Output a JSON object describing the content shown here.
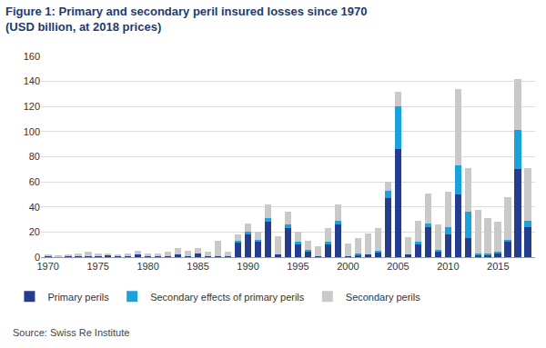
{
  "chart_data": {
    "type": "bar",
    "title": "Figure 1: Primary and secondary peril insured losses since 1970\n(USD billion, at 2018 prices)",
    "annotations": [
      "Source: Swiss Re Institute"
    ],
    "x": [
      1970,
      1971,
      1972,
      1973,
      1974,
      1975,
      1976,
      1977,
      1978,
      1979,
      1980,
      1981,
      1982,
      1983,
      1984,
      1985,
      1986,
      1987,
      1988,
      1989,
      1990,
      1991,
      1992,
      1993,
      1994,
      1995,
      1996,
      1997,
      1998,
      1999,
      2000,
      2001,
      2002,
      2003,
      2004,
      2005,
      2006,
      2007,
      2008,
      2009,
      2010,
      2011,
      2012,
      2013,
      2014,
      2015,
      2016,
      2017,
      2018
    ],
    "series": [
      {
        "name": "Primary perils",
        "color": "#263c8e",
        "values": [
          1,
          0.5,
          1,
          1,
          1,
          1,
          2,
          0.5,
          1,
          2,
          1,
          1,
          1,
          2,
          1,
          3,
          1,
          1,
          1,
          12,
          18,
          13,
          28,
          2,
          23,
          10,
          5,
          1,
          10,
          26,
          1,
          2,
          2,
          4,
          47,
          86,
          2,
          10,
          24,
          5,
          18,
          50,
          15,
          2,
          2,
          3,
          12,
          70,
          24
        ]
      },
      {
        "name": "Secondary effects of primary perils",
        "color": "#1ba1db",
        "values": [
          0,
          0,
          0,
          0,
          0,
          0,
          0,
          0,
          0,
          0,
          0,
          0,
          0,
          0,
          0,
          0,
          0,
          0,
          0,
          1,
          2,
          1,
          3,
          0,
          3,
          2,
          1,
          0,
          2,
          3,
          0,
          1,
          0,
          1,
          6,
          34,
          0,
          2,
          3,
          1,
          6,
          23,
          21,
          1,
          1,
          1,
          2,
          31,
          5
        ]
      },
      {
        "name": "Secondary perils",
        "color": "#c9c9c9",
        "values": [
          1,
          1,
          1.5,
          2,
          3,
          2,
          1,
          1.5,
          2,
          3,
          2,
          2,
          3,
          5,
          4,
          4,
          3,
          12,
          3,
          5,
          7,
          6,
          11,
          15,
          10,
          8,
          7,
          8,
          11,
          13,
          10,
          12,
          17,
          18,
          7,
          12,
          14,
          17,
          24,
          20,
          28,
          61,
          35,
          35,
          28,
          24,
          34,
          41,
          42
        ]
      }
    ],
    "xlim": [
      1969.3,
      2018.7
    ],
    "xticks": [
      1970,
      1975,
      1980,
      1985,
      1990,
      1995,
      2000,
      2005,
      2010,
      2015
    ],
    "ylim": [
      0,
      160
    ],
    "yticks": [
      0,
      20,
      40,
      60,
      80,
      100,
      120,
      140,
      160
    ],
    "stacked": true,
    "grid": true,
    "legend": "bottom"
  }
}
